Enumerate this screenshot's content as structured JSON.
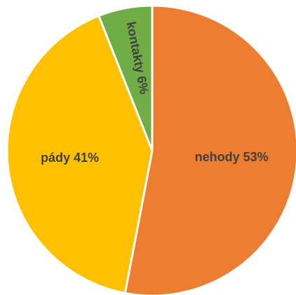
{
  "chart_data": {
    "type": "pie",
    "title": "",
    "legend": "none",
    "slices": [
      {
        "label": "nehody",
        "value": 53,
        "display": "nehody 53%",
        "color": "#ED7D31"
      },
      {
        "label": "pády",
        "value": 41,
        "display": "pády 41%",
        "color": "#FFC000"
      },
      {
        "label": "kontakty",
        "value": 6,
        "display": "kontakty 6%",
        "color": "#70AD47"
      }
    ]
  }
}
